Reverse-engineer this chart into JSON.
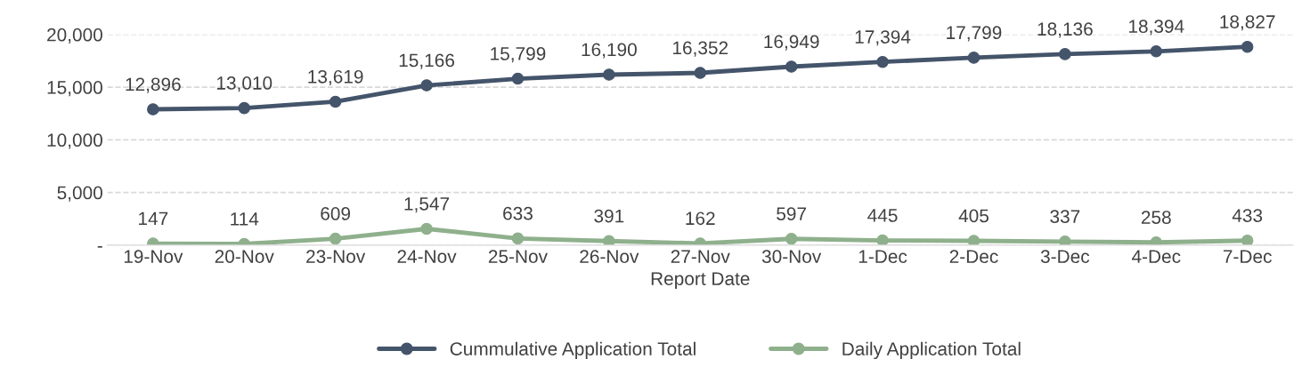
{
  "chart_data": {
    "type": "line",
    "xlabel": "Report Date",
    "categories": [
      "19-Nov",
      "20-Nov",
      "23-Nov",
      "24-Nov",
      "25-Nov",
      "26-Nov",
      "27-Nov",
      "30-Nov",
      "1-Dec",
      "2-Dec",
      "3-Dec",
      "4-Dec",
      "7-Dec"
    ],
    "series": [
      {
        "name": "Cummulative Application Total",
        "color": "#44546a",
        "values": [
          12896,
          13010,
          13619,
          15166,
          15799,
          16190,
          16352,
          16949,
          17394,
          17799,
          18136,
          18394,
          18827
        ],
        "value_labels": [
          "12,896",
          "13,010",
          "13,619",
          "15,166",
          "15,799",
          "16,190",
          "16,352",
          "16,949",
          "17,394",
          "17,799",
          "18,136",
          "18,394",
          "18,827"
        ]
      },
      {
        "name": "Daily Application Total",
        "color": "#8fb08c",
        "values": [
          147,
          114,
          609,
          1547,
          633,
          391,
          162,
          597,
          445,
          405,
          337,
          258,
          433
        ],
        "value_labels": [
          "147",
          "114",
          "609",
          "1,547",
          "633",
          "391",
          "162",
          "597",
          "445",
          "405",
          "337",
          "258",
          "433"
        ]
      }
    ],
    "ylim": [
      0,
      20000
    ],
    "yticks": [
      {
        "value": 0,
        "label": "-"
      },
      {
        "value": 5000,
        "label": "5,000"
      },
      {
        "value": 10000,
        "label": "10,000"
      },
      {
        "value": 15000,
        "label": "15,000"
      },
      {
        "value": 20000,
        "label": "20,000"
      }
    ],
    "grid": "y",
    "legend": "bottom",
    "marker": "circle",
    "line_style": "solid"
  }
}
